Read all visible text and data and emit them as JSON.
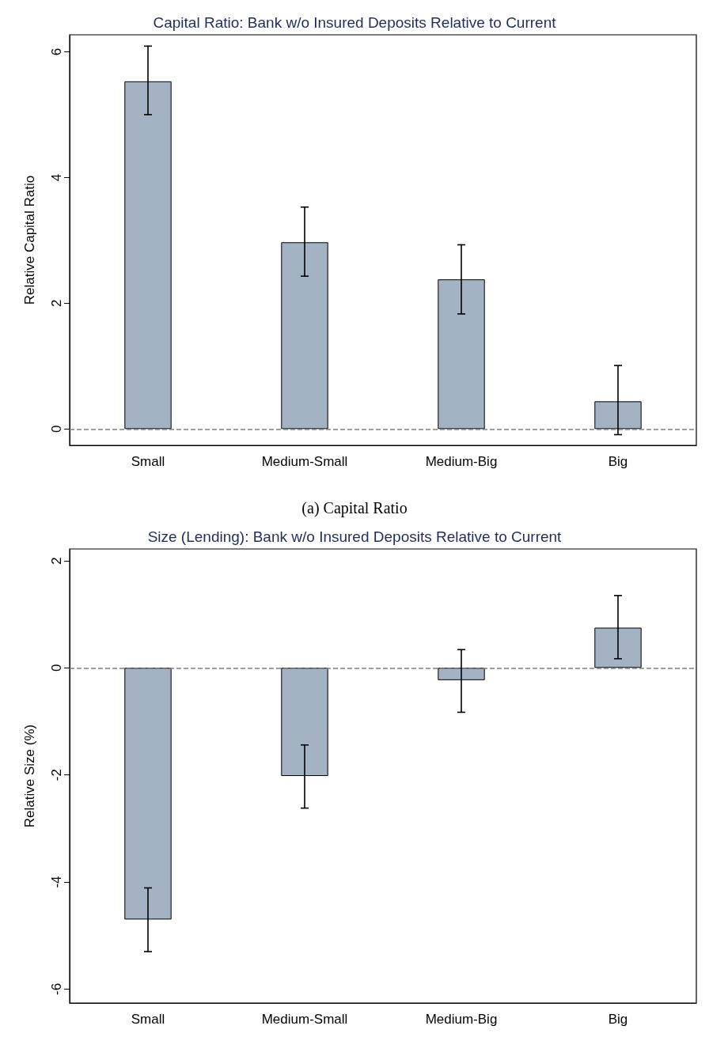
{
  "chart_data": [
    {
      "type": "bar",
      "title": "Capital Ratio: Bank w/o Insured Deposits Relative to Current",
      "ylabel": "Relative Capital Ratio",
      "categories": [
        "Small",
        "Medium-Small",
        "Medium-Big",
        "Big"
      ],
      "series": [
        {
          "color": "#a3b3c3",
          "values": [
            5.53,
            2.97,
            2.38,
            0.44
          ],
          "errors": [
            [
              5.0,
              6.09
            ],
            [
              2.43,
              3.53
            ],
            [
              1.83,
              2.93
            ],
            [
              -0.09,
              1.01
            ]
          ]
        }
      ],
      "ylim": [
        -0.26,
        6.27
      ],
      "yticks": [
        0,
        2,
        4,
        6
      ],
      "grid": false,
      "ref_lines": [
        {
          "axis": "y",
          "value": 0,
          "color": "#808080",
          "line_style": "dashed"
        }
      ],
      "annotations": [
        "(a) Capital Ratio"
      ]
    },
    {
      "type": "bar",
      "title": "Size (Lending): Bank w/o Insured Deposits Relative to Current",
      "ylabel": "Relative Size (%)",
      "categories": [
        "Small",
        "Medium-Small",
        "Medium-Big",
        "Big"
      ],
      "series": [
        {
          "color": "#a3b3c3",
          "values": [
            -4.7,
            -2.02,
            -0.23,
            0.75
          ],
          "errors": [
            [
              -5.3,
              -4.11
            ],
            [
              -2.62,
              -1.44
            ],
            [
              -0.83,
              0.34
            ],
            [
              0.17,
              1.35
            ]
          ]
        }
      ],
      "ylim": [
        -6.26,
        2.22
      ],
      "yticks": [
        -6,
        -4,
        -2,
        0,
        2
      ],
      "grid": false,
      "ref_lines": [
        {
          "axis": "y",
          "value": 0,
          "color": "#808080",
          "line_style": "dashed"
        }
      ]
    }
  ]
}
